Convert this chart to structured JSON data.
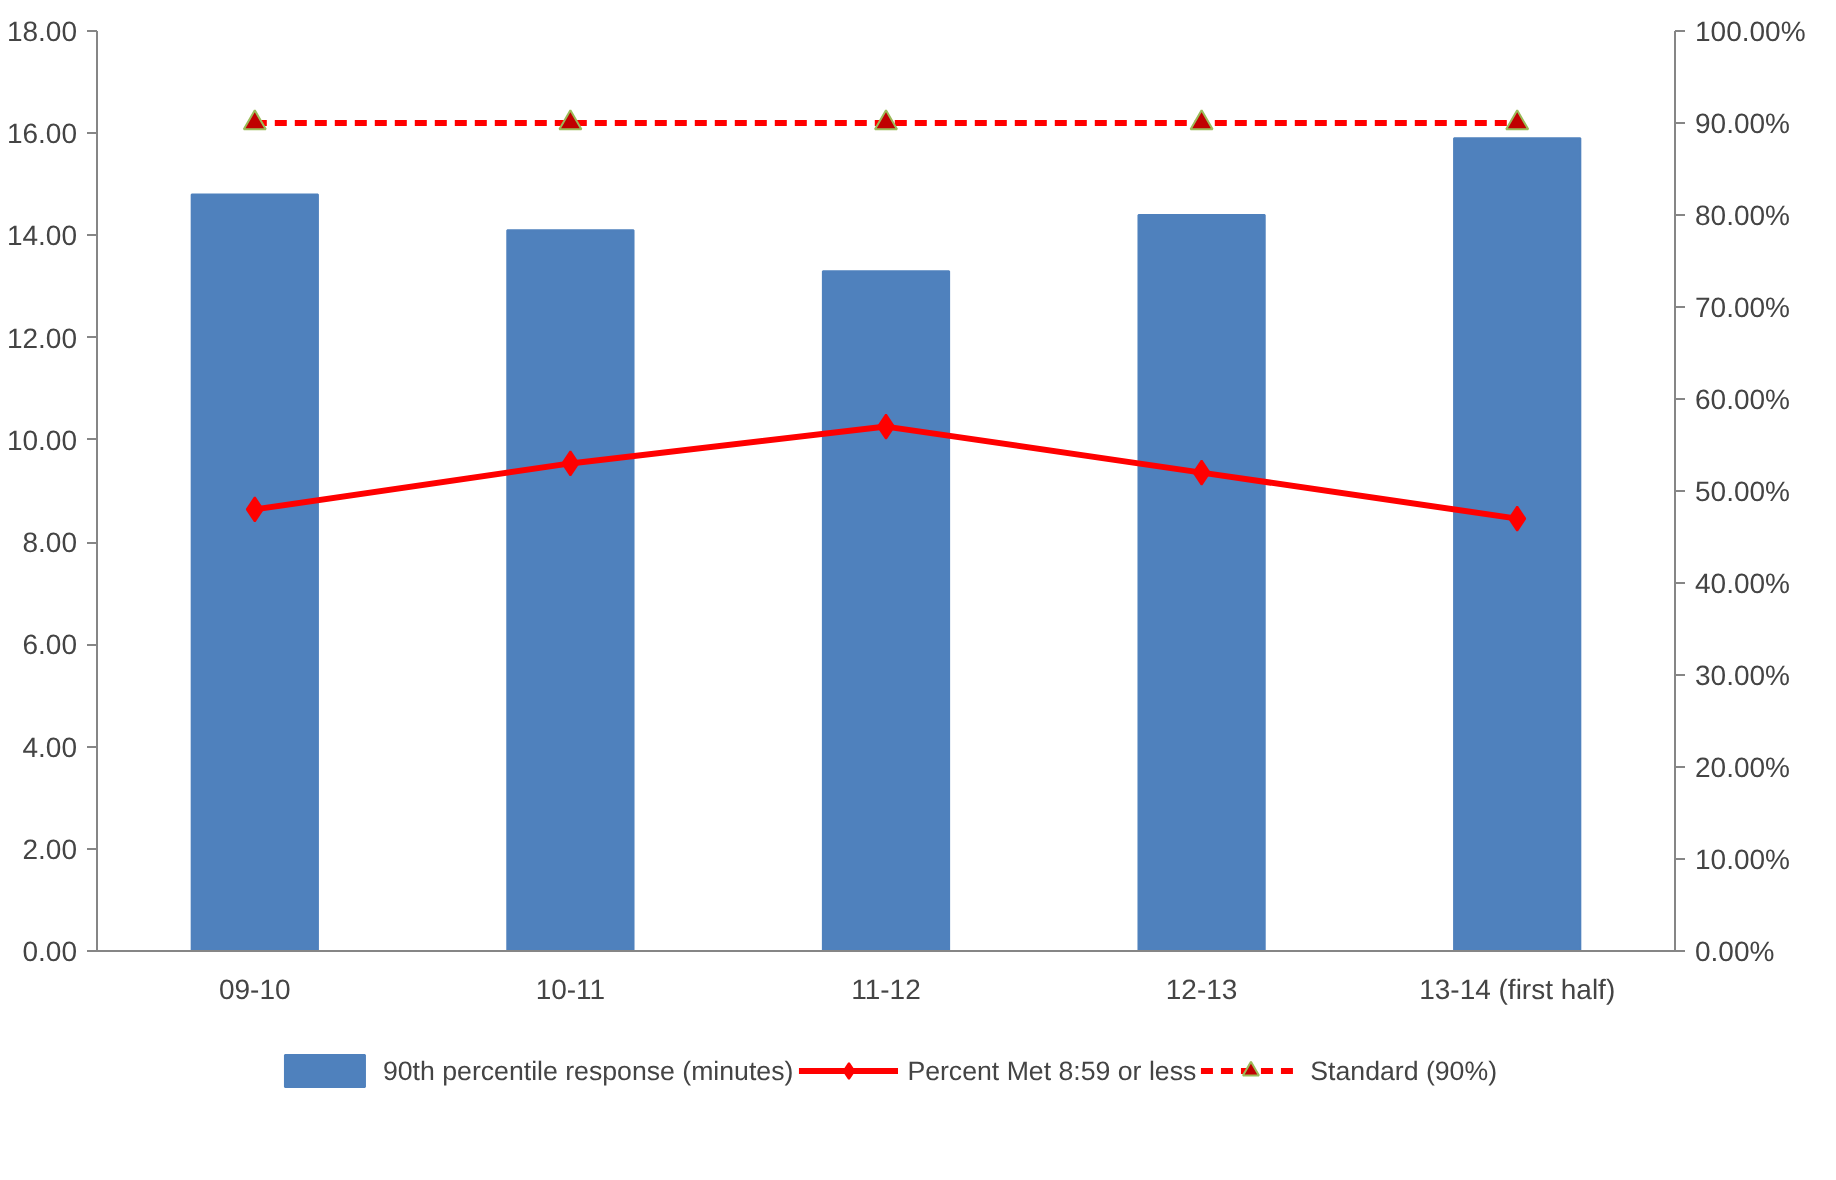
{
  "chart_data": {
    "type": "bar",
    "categories": [
      "09-10",
      "10-11",
      "11-12",
      "12-13",
      "13-14 (first half)"
    ],
    "series": [
      {
        "name": "90th percentile response (minutes)",
        "color": "#4f81bd",
        "values": [
          14.8,
          14.1,
          13.3,
          14.4,
          15.9
        ]
      },
      {
        "name": "Percent Met 8:59 or less",
        "type": "line",
        "axis": "y2",
        "color": "#ff0000",
        "marker": "diamond",
        "line_style": "solid",
        "values": [
          48,
          53,
          57,
          52,
          47
        ]
      },
      {
        "name": "Standard (90%)",
        "type": "line",
        "axis": "y2",
        "color": "#ff0000",
        "marker": "triangle",
        "line_style": "dashed",
        "values": [
          90,
          90,
          90,
          90,
          90
        ]
      }
    ],
    "ylim": [
      0,
      18
    ],
    "yticks": [
      {
        "value": 0,
        "label": "0.00"
      },
      {
        "value": 2,
        "label": "2.00"
      },
      {
        "value": 4,
        "label": "4.00"
      },
      {
        "value": 6,
        "label": "6.00"
      },
      {
        "value": 8,
        "label": "8.00"
      },
      {
        "value": 10,
        "label": "10.00"
      },
      {
        "value": 12,
        "label": "12.00"
      },
      {
        "value": 14,
        "label": "14.00"
      },
      {
        "value": 16,
        "label": "16.00"
      },
      {
        "value": 18,
        "label": "18.00"
      }
    ],
    "y2lim": [
      0,
      100
    ],
    "y2ticks": [
      {
        "value": 0,
        "label": "0.00%"
      },
      {
        "value": 10,
        "label": "10.00%"
      },
      {
        "value": 20,
        "label": "20.00%"
      },
      {
        "value": 30,
        "label": "30.00%"
      },
      {
        "value": 40,
        "label": "40.00%"
      },
      {
        "value": 50,
        "label": "50.00%"
      },
      {
        "value": 60,
        "label": "60.00%"
      },
      {
        "value": 70,
        "label": "70.00%"
      },
      {
        "value": 80,
        "label": "80.00%"
      },
      {
        "value": 90,
        "label": "90.00%"
      },
      {
        "value": 100,
        "label": "100.00%"
      }
    ],
    "grid": false,
    "legend": "bottom"
  }
}
